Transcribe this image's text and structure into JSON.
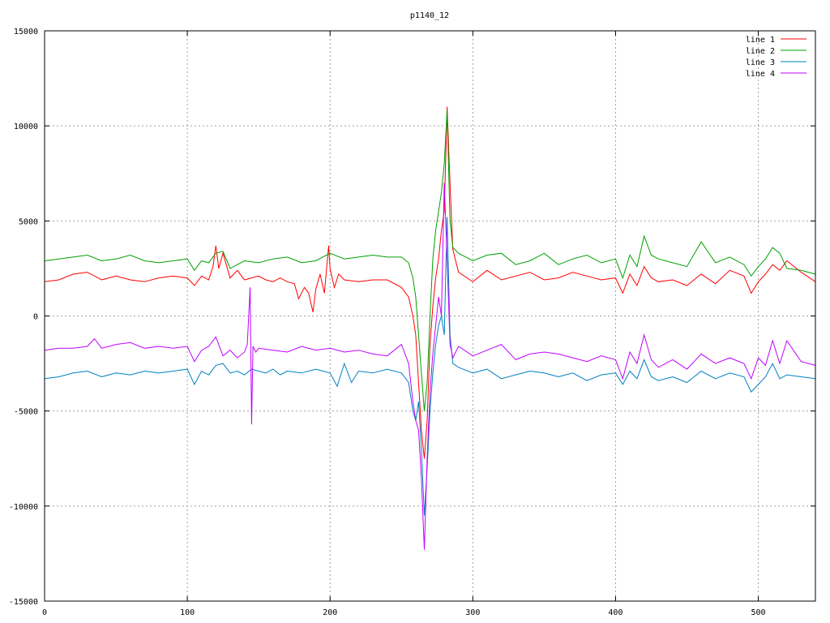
{
  "chart_data": {
    "type": "line",
    "title": "p1140_12",
    "xlabel": "",
    "ylabel": "",
    "xlim": [
      0,
      540
    ],
    "ylim": [
      -15000,
      15000
    ],
    "xticks": [
      0,
      100,
      200,
      300,
      400,
      500
    ],
    "yticks": [
      -15000,
      -10000,
      -5000,
      0,
      5000,
      10000,
      15000
    ],
    "grid": true,
    "legend_position": "top-right",
    "series": [
      {
        "name": "line 1",
        "color": "#ff0000",
        "x": [
          0,
          10,
          20,
          30,
          40,
          50,
          60,
          70,
          80,
          90,
          100,
          105,
          110,
          115,
          118,
          120,
          122,
          125,
          130,
          135,
          140,
          145,
          150,
          155,
          160,
          165,
          170,
          175,
          178,
          182,
          185,
          188,
          190,
          193,
          196,
          199,
          200,
          203,
          206,
          210,
          220,
          230,
          240,
          250,
          255,
          258,
          260,
          262,
          264,
          266,
          268,
          270,
          272,
          274,
          276,
          278,
          280,
          282,
          284,
          286,
          290,
          300,
          310,
          320,
          330,
          340,
          350,
          360,
          370,
          380,
          390,
          400,
          405,
          410,
          415,
          420,
          425,
          430,
          440,
          450,
          460,
          470,
          480,
          490,
          495,
          500,
          505,
          510,
          515,
          520,
          530,
          540
        ],
        "y": [
          1800,
          1900,
          2200,
          2300,
          1900,
          2100,
          1900,
          1800,
          2000,
          2100,
          2000,
          1600,
          2100,
          1900,
          2600,
          3700,
          2500,
          3300,
          2000,
          2400,
          1900,
          2000,
          2100,
          1900,
          1800,
          2000,
          1800,
          1700,
          900,
          1500,
          1200,
          200,
          1400,
          2200,
          1200,
          3700,
          2500,
          1500,
          2200,
          1900,
          1800,
          1900,
          1900,
          1500,
          1000,
          0,
          -1000,
          -3500,
          -6000,
          -7500,
          -5500,
          -1500,
          500,
          2000,
          3000,
          4500,
          5500,
          11000,
          7000,
          3500,
          2300,
          1800,
          2400,
          1900,
          2100,
          2300,
          1900,
          2000,
          2300,
          2100,
          1900,
          2000,
          1200,
          2200,
          1600,
          2600,
          2000,
          1800,
          1900,
          1600,
          2200,
          1700,
          2400,
          2100,
          1200,
          1800,
          2200,
          2700,
          2400,
          2900,
          2300,
          1800
        ]
      },
      {
        "name": "line 2",
        "color": "#00a000",
        "x": [
          0,
          10,
          20,
          30,
          40,
          50,
          60,
          70,
          80,
          90,
          100,
          105,
          110,
          115,
          120,
          125,
          130,
          140,
          150,
          160,
          170,
          180,
          190,
          200,
          210,
          220,
          230,
          240,
          250,
          255,
          258,
          260,
          262,
          264,
          266,
          268,
          270,
          272,
          274,
          276,
          278,
          280,
          282,
          284,
          286,
          290,
          300,
          310,
          320,
          330,
          340,
          350,
          360,
          370,
          380,
          390,
          400,
          405,
          410,
          415,
          420,
          425,
          430,
          440,
          450,
          460,
          470,
          480,
          490,
          495,
          500,
          505,
          510,
          515,
          520,
          530,
          540
        ],
        "y": [
          2900,
          3000,
          3100,
          3200,
          2900,
          3000,
          3200,
          2900,
          2800,
          2900,
          3000,
          2400,
          2900,
          2800,
          3300,
          3400,
          2500,
          2900,
          2800,
          3000,
          3100,
          2800,
          2900,
          3300,
          3000,
          3100,
          3200,
          3100,
          3100,
          2800,
          2000,
          1000,
          -1000,
          -3000,
          -5000,
          -3500,
          0,
          3000,
          4500,
          5500,
          6500,
          8000,
          10800,
          5000,
          3600,
          3300,
          2900,
          3200,
          3300,
          2700,
          2900,
          3300,
          2700,
          3000,
          3200,
          2800,
          3000,
          2000,
          3200,
          2600,
          4200,
          3200,
          3000,
          2800,
          2600,
          3900,
          2800,
          3100,
          2700,
          2100,
          2600,
          3000,
          3600,
          3300,
          2500,
          2400,
          2200
        ]
      },
      {
        "name": "line 3",
        "color": "#0080c0",
        "x": [
          0,
          10,
          20,
          30,
          40,
          50,
          60,
          70,
          80,
          90,
          100,
          105,
          110,
          115,
          120,
          125,
          130,
          135,
          140,
          145,
          150,
          155,
          160,
          165,
          170,
          180,
          190,
          200,
          205,
          210,
          215,
          220,
          230,
          240,
          250,
          255,
          258,
          260,
          262,
          264,
          266,
          268,
          270,
          272,
          274,
          276,
          278,
          280,
          282,
          284,
          286,
          290,
          300,
          310,
          320,
          330,
          340,
          350,
          360,
          370,
          380,
          390,
          400,
          405,
          410,
          415,
          420,
          425,
          430,
          440,
          450,
          460,
          470,
          480,
          490,
          495,
          500,
          505,
          510,
          515,
          520,
          530,
          540
        ],
        "y": [
          -3300,
          -3200,
          -3000,
          -2900,
          -3200,
          -3000,
          -3100,
          -2900,
          -3000,
          -2900,
          -2800,
          -3600,
          -2900,
          -3100,
          -2600,
          -2500,
          -3000,
          -2900,
          -3100,
          -2800,
          -2900,
          -3000,
          -2800,
          -3100,
          -2900,
          -3000,
          -2800,
          -3000,
          -3700,
          -2500,
          -3500,
          -2900,
          -3000,
          -2800,
          -3000,
          -3500,
          -5000,
          -5500,
          -4500,
          -7000,
          -10500,
          -8000,
          -5000,
          -3000,
          -1500,
          -500,
          0,
          -1000,
          5200,
          -1000,
          -2500,
          -2700,
          -3000,
          -2800,
          -3300,
          -3100,
          -2900,
          -3000,
          -3200,
          -3000,
          -3400,
          -3100,
          -3000,
          -3600,
          -2900,
          -3300,
          -2300,
          -3200,
          -3400,
          -3200,
          -3500,
          -2900,
          -3300,
          -3000,
          -3200,
          -4000,
          -3600,
          -3200,
          -2500,
          -3300,
          -3100,
          -3200,
          -3300
        ]
      },
      {
        "name": "line 4",
        "color": "#c000ff",
        "x": [
          0,
          10,
          20,
          30,
          35,
          40,
          50,
          60,
          70,
          80,
          90,
          100,
          105,
          110,
          115,
          120,
          125,
          130,
          135,
          140,
          142,
          144,
          145,
          146,
          148,
          150,
          160,
          170,
          180,
          190,
          200,
          210,
          220,
          230,
          240,
          250,
          255,
          258,
          260,
          262,
          264,
          266,
          268,
          270,
          272,
          274,
          276,
          278,
          280,
          282,
          284,
          286,
          290,
          300,
          310,
          320,
          330,
          340,
          350,
          360,
          370,
          380,
          390,
          400,
          405,
          410,
          415,
          420,
          425,
          430,
          440,
          450,
          460,
          470,
          480,
          490,
          495,
          500,
          505,
          510,
          515,
          520,
          530,
          540
        ],
        "y": [
          -1800,
          -1700,
          -1700,
          -1600,
          -1200,
          -1700,
          -1500,
          -1400,
          -1700,
          -1600,
          -1700,
          -1600,
          -2400,
          -1800,
          -1600,
          -1100,
          -2100,
          -1800,
          -2200,
          -1900,
          -1500,
          1500,
          -5700,
          -1600,
          -1900,
          -1700,
          -1800,
          -1900,
          -1600,
          -1800,
          -1700,
          -1900,
          -1800,
          -2000,
          -2100,
          -1500,
          -2500,
          -4500,
          -5500,
          -6000,
          -8500,
          -12300,
          -7500,
          -4000,
          -2000,
          -500,
          1000,
          0,
          7000,
          3000,
          -1500,
          -2200,
          -1600,
          -2100,
          -1800,
          -1500,
          -2300,
          -2000,
          -1900,
          -2000,
          -2200,
          -2400,
          -2100,
          -2300,
          -3300,
          -1900,
          -2500,
          -1000,
          -2300,
          -2700,
          -2300,
          -2800,
          -2000,
          -2500,
          -2200,
          -2500,
          -3300,
          -2200,
          -2600,
          -1300,
          -2500,
          -1300,
          -2400,
          -2600
        ]
      }
    ]
  }
}
